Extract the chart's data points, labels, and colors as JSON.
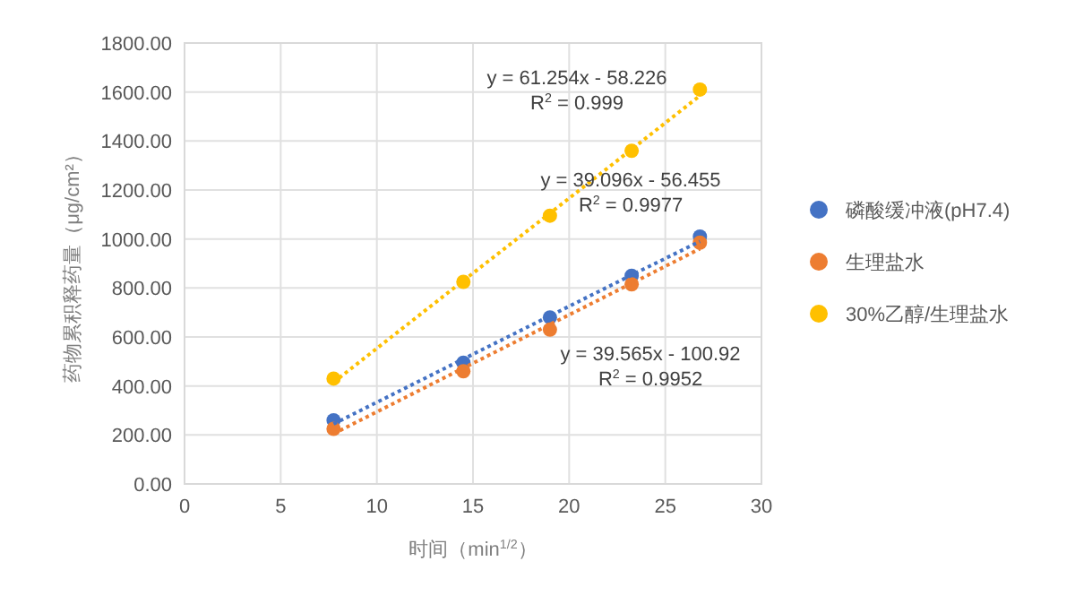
{
  "chart_data": {
    "type": "scatter",
    "xlabel": "时间（min$^{1/2}$）",
    "ylabel": "药物累积释药量（μg/cm²）",
    "xlim": [
      0,
      30
    ],
    "xticks": [
      0,
      5,
      10,
      15,
      20,
      25,
      30
    ],
    "ylim": [
      0,
      1800
    ],
    "yticks": [
      {
        "value": 0,
        "label": "0.00"
      },
      {
        "value": 200,
        "label": "200.00"
      },
      {
        "value": 400,
        "label": "400.00"
      },
      {
        "value": 600,
        "label": "600.00"
      },
      {
        "value": 800,
        "label": "800.00"
      },
      {
        "value": 1000,
        "label": "1000.00"
      },
      {
        "value": 1200,
        "label": "1200.00"
      },
      {
        "value": 1400,
        "label": "1400.00"
      },
      {
        "value": 1600,
        "label": "1600.00"
      },
      {
        "value": 1800,
        "label": "1800.00"
      }
    ],
    "grid": true,
    "legend": "right",
    "marker": "circle",
    "x": [
      7.75,
      14.5,
      19,
      23.25,
      26.8
    ],
    "series": [
      {
        "name": "磷酸缓冲液(pH7.4)",
        "color": "#4472c4",
        "values": [
          260,
          495,
          680,
          850,
          1010
        ]
      },
      {
        "name": "生理盐水",
        "color": "#ed7d31",
        "values": [
          225,
          460,
          630,
          815,
          985
        ]
      },
      {
        "name": "30%乙醇/生理盐水",
        "color": "#ffc000",
        "values": [
          430,
          825,
          1095,
          1360,
          1610
        ]
      },
      {
        "type": "line",
        "line_style": "dotted",
        "marker": "none",
        "color": "#4472c4",
        "values": [
          245,
          510,
          686,
          853,
          990
        ]
      },
      {
        "type": "line",
        "line_style": "dotted",
        "marker": "none",
        "color": "#ed7d31",
        "values": [
          205,
          473,
          651,
          819,
          960
        ]
      },
      {
        "type": "line",
        "line_style": "dotted",
        "marker": "none",
        "color": "#ffc000",
        "values": [
          415,
          830,
          1105,
          1366,
          1585
        ]
      }
    ],
    "annotations": [
      "y = 61.254x - 58.226\nR$^{2}$ = 0.999",
      "y = 39.096x - 56.455\nR$^{2}$ = 0.9977",
      "y = 39.565x - 100.92\nR$^{2}$ = 0.9952"
    ]
  }
}
